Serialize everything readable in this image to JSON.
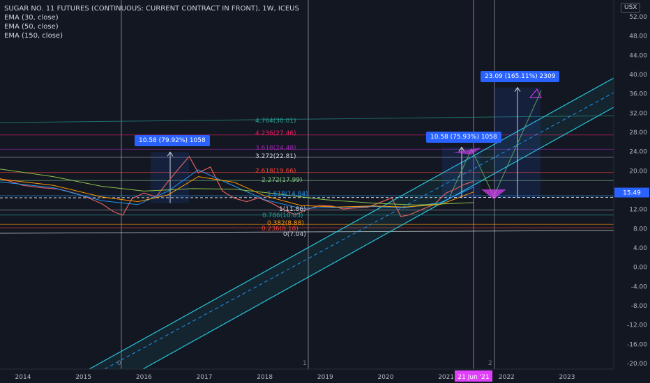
{
  "title": "SUGAR NO. 11 FUTURES (CONTINUOUS: CURRENT CONTRACT IN FRONT), 1W, ICEUS",
  "indicators": [
    "EMA (30, close)",
    "EMA (50, close)",
    "EMA (150, close)"
  ],
  "currency": "USX",
  "price_tag": "15.49",
  "date_tag": "21 Jun '21",
  "measurements": [
    {
      "label": "10.58 (79.92%) 1058"
    },
    {
      "label": "10.58 (75.93%) 1058"
    },
    {
      "label": "23.09 (165.11%) 2309"
    }
  ],
  "fib_labels": [
    "4.764(30.01)",
    "4.236(27.46)",
    "3.618(24.48)",
    "3.272(22.81)",
    "2.618(19.66)",
    "2.272(17.99)",
    "1.618(14.84)",
    "1(11.86)",
    "0.786(10.83)",
    "0.382(8.88)",
    "0.236(8.18)",
    "0(7.04)"
  ],
  "vline_labels": [
    "0",
    "1",
    "2"
  ],
  "colors": {
    "background": "#131722",
    "channel": "#26c6da",
    "accent": "#2962ff",
    "date_line": "#e040fb",
    "price": "#d1d4dc"
  },
  "chart_data": {
    "type": "line",
    "title": "SUGAR NO. 11 FUTURES (CONTINUOUS: CURRENT CONTRACT IN FRONT), 1W, ICEUS",
    "ylim": [
      -20,
      54
    ],
    "xlim": [
      2013.55,
      2023.95
    ],
    "y_ticks": [
      52,
      48,
      44,
      40,
      36,
      32,
      28,
      24,
      20,
      16,
      12,
      8,
      4,
      0,
      -4,
      -8,
      -12,
      -16,
      -20
    ],
    "x_ticks": [
      "2014",
      "2015",
      "2016",
      "2017",
      "2018",
      "2019",
      "2020",
      "2021",
      "2022",
      "2023"
    ],
    "last_price": 15.49,
    "grid": false,
    "series": [
      {
        "name": "SUGAR NO. 11",
        "x": [
          2013.55,
          2013.8,
          2014.0,
          2014.3,
          2014.6,
          2014.9,
          2015.1,
          2015.3,
          2015.5,
          2015.65,
          2015.8,
          2016.0,
          2016.2,
          2016.4,
          2016.6,
          2016.75,
          2016.9,
          2017.1,
          2017.3,
          2017.5,
          2017.7,
          2017.9,
          2018.1,
          2018.3,
          2018.5,
          2018.7,
          2018.9,
          2019.1,
          2019.3,
          2019.5,
          2019.7,
          2019.9,
          2020.1,
          2020.25,
          2020.4,
          2020.6,
          2020.8,
          2021.0,
          2021.15,
          2021.3,
          2021.45
        ],
        "values": [
          18.6,
          17.8,
          17.0,
          16.5,
          16.2,
          15.2,
          14.3,
          13.2,
          11.5,
          10.8,
          14.2,
          15.4,
          14.6,
          17.8,
          20.8,
          23.0,
          19.6,
          20.8,
          15.8,
          14.3,
          13.6,
          14.4,
          13.4,
          12.0,
          10.9,
          12.0,
          12.8,
          12.7,
          12.1,
          12.3,
          12.4,
          13.4,
          14.4,
          10.5,
          10.9,
          12.0,
          13.0,
          15.4,
          16.2,
          17.2,
          17.8
        ]
      },
      {
        "name": "EMA (30, close)",
        "x": [
          2013.55,
          2014.5,
          2015.3,
          2015.9,
          2016.4,
          2016.9,
          2017.5,
          2018.0,
          2018.6,
          2019.2,
          2019.8,
          2020.3,
          2020.9,
          2021.45
        ],
        "values": [
          17.8,
          16.5,
          13.8,
          13.0,
          15.8,
          20.2,
          16.8,
          14.0,
          12.2,
          12.4,
          12.6,
          12.3,
          13.4,
          16.6
        ]
      },
      {
        "name": "EMA (50, close)",
        "x": [
          2013.55,
          2014.5,
          2015.3,
          2015.9,
          2016.4,
          2016.9,
          2017.5,
          2018.0,
          2018.6,
          2019.2,
          2019.8,
          2020.3,
          2020.9,
          2021.45
        ],
        "values": [
          18.4,
          17.0,
          14.6,
          13.6,
          15.0,
          18.8,
          17.6,
          14.8,
          12.8,
          12.5,
          12.7,
          12.5,
          13.0,
          15.6
        ]
      },
      {
        "name": "EMA (150, close)",
        "x": [
          2013.55,
          2014.5,
          2015.3,
          2016.0,
          2016.8,
          2017.5,
          2018.2,
          2019.0,
          2019.8,
          2020.5,
          2021.45
        ],
        "values": [
          20.5,
          18.8,
          16.8,
          15.8,
          16.3,
          16.2,
          15.2,
          14.0,
          13.3,
          12.9,
          13.4
        ]
      }
    ]
  }
}
